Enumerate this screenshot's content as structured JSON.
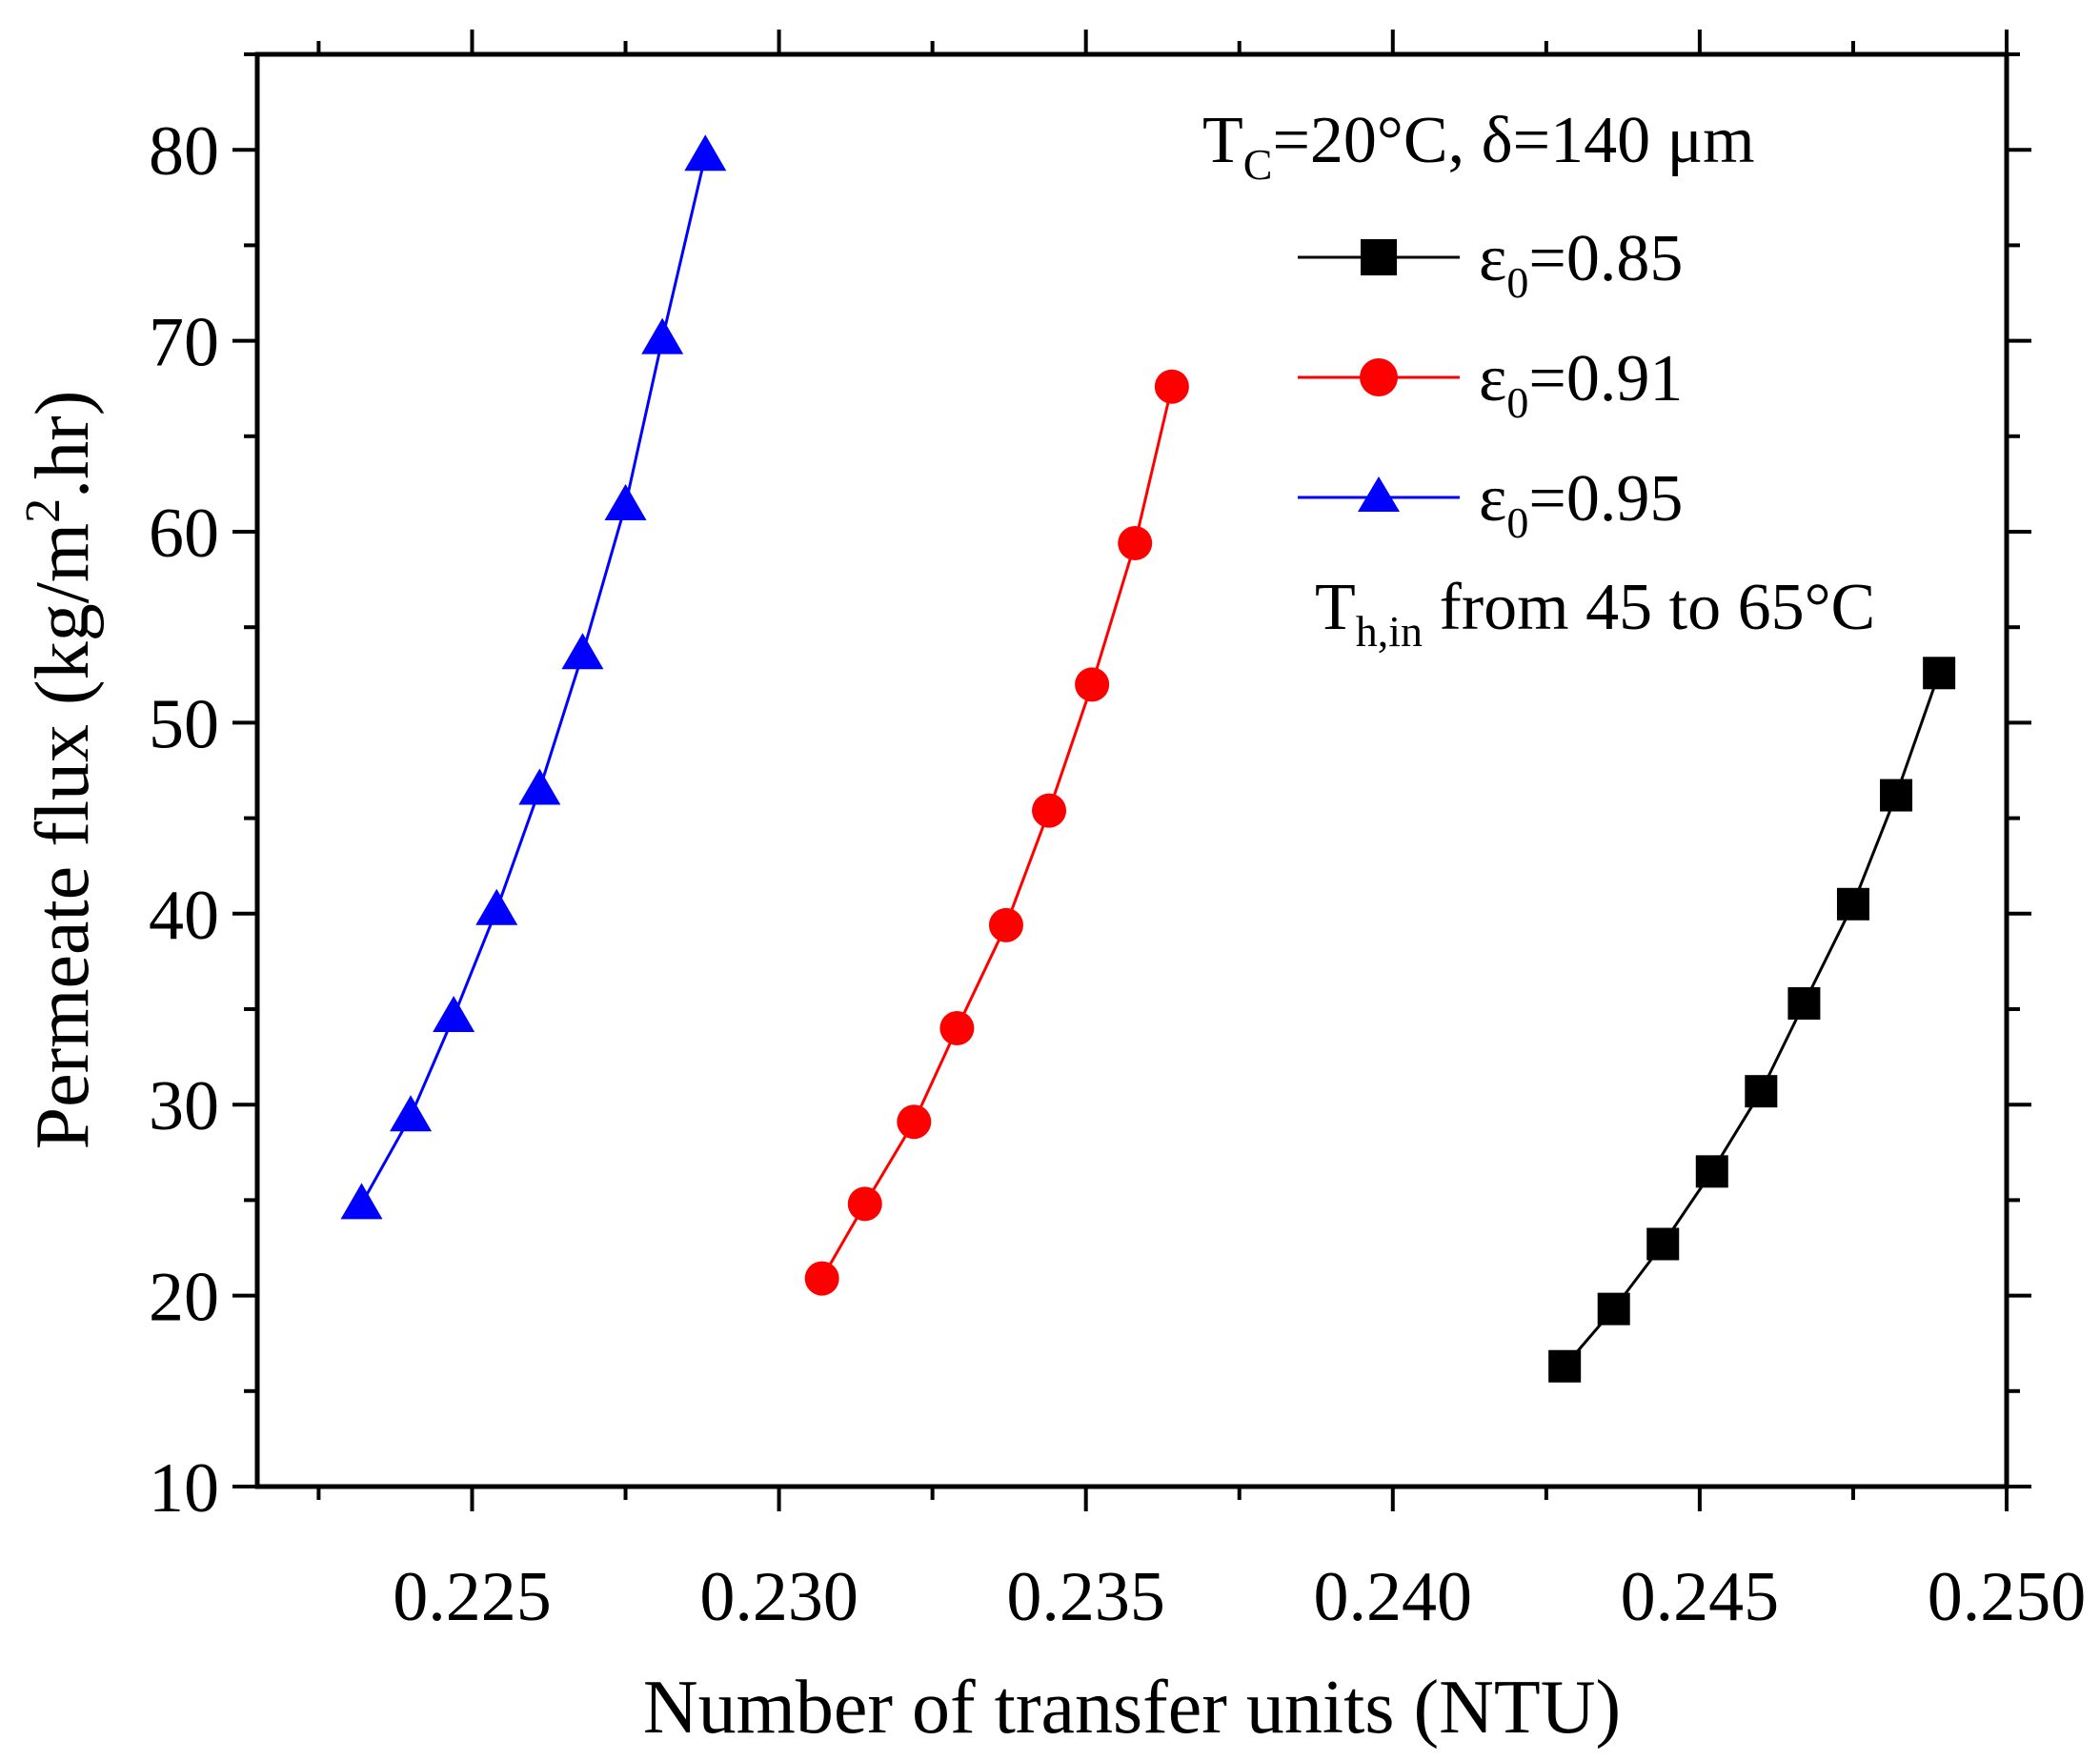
{
  "chart_data": {
    "type": "line",
    "title": "",
    "xlabel": "Number of transfer units (NTU)",
    "ylabel": {
      "main": "Permeate flux (kg/m",
      "sup": "2",
      "tail": ".hr)"
    },
    "xlim": [
      0.2215,
      0.25
    ],
    "ylim": [
      10,
      85
    ],
    "xticks": [
      0.225,
      0.23,
      0.235,
      0.24,
      0.245,
      0.25
    ],
    "xtick_labels": [
      "0.225",
      "0.230",
      "0.235",
      "0.240",
      "0.245",
      "0.250"
    ],
    "yticks": [
      10,
      20,
      30,
      40,
      50,
      60,
      70,
      80
    ],
    "ytick_labels": [
      "10",
      "20",
      "30",
      "40",
      "50",
      "60",
      "70",
      "80"
    ],
    "grid": false,
    "legend_position": "top-right",
    "annotations": {
      "condition": {
        "t": "T",
        "t_sub": "C",
        "rest": "=20°C, δ=140 μm"
      },
      "range": {
        "t": "T",
        "t_sub": "h,in",
        "rest": " from 45 to 65°C"
      }
    },
    "series": [
      {
        "name": "ε0=0.85",
        "label_symbol": "ε",
        "label_sub": "0",
        "label_value": "=0.85",
        "color": "#000000",
        "marker": "square",
        "x": [
          0.2428,
          0.2436,
          0.2444,
          0.2452,
          0.246,
          0.2467,
          0.2475,
          0.2482,
          0.2489
        ],
        "y": [
          16.3,
          19.3,
          22.7,
          26.5,
          30.7,
          35.3,
          40.5,
          46.2,
          52.6
        ]
      },
      {
        "name": "ε0=0.91",
        "label_symbol": "ε",
        "label_sub": "0",
        "label_value": "=0.91",
        "color": "#ff0000",
        "marker": "circle",
        "x": [
          0.2307,
          0.2314,
          0.2322,
          0.2329,
          0.2337,
          0.2344,
          0.2351,
          0.2358,
          0.2364
        ],
        "y": [
          20.9,
          24.8,
          29.1,
          34.0,
          39.4,
          45.4,
          52.0,
          59.4,
          67.6
        ]
      },
      {
        "name": "ε0=0.95",
        "label_symbol": "ε",
        "label_sub": "0",
        "label_value": "=0.95",
        "color": "#0000ff",
        "marker": "triangle",
        "x": [
          0.2232,
          0.224,
          0.2247,
          0.2254,
          0.2261,
          0.2268,
          0.2275,
          0.2281,
          0.2288
        ],
        "y": [
          24.8,
          29.4,
          34.6,
          40.2,
          46.5,
          53.6,
          61.4,
          70.1,
          79.7
        ]
      }
    ]
  }
}
